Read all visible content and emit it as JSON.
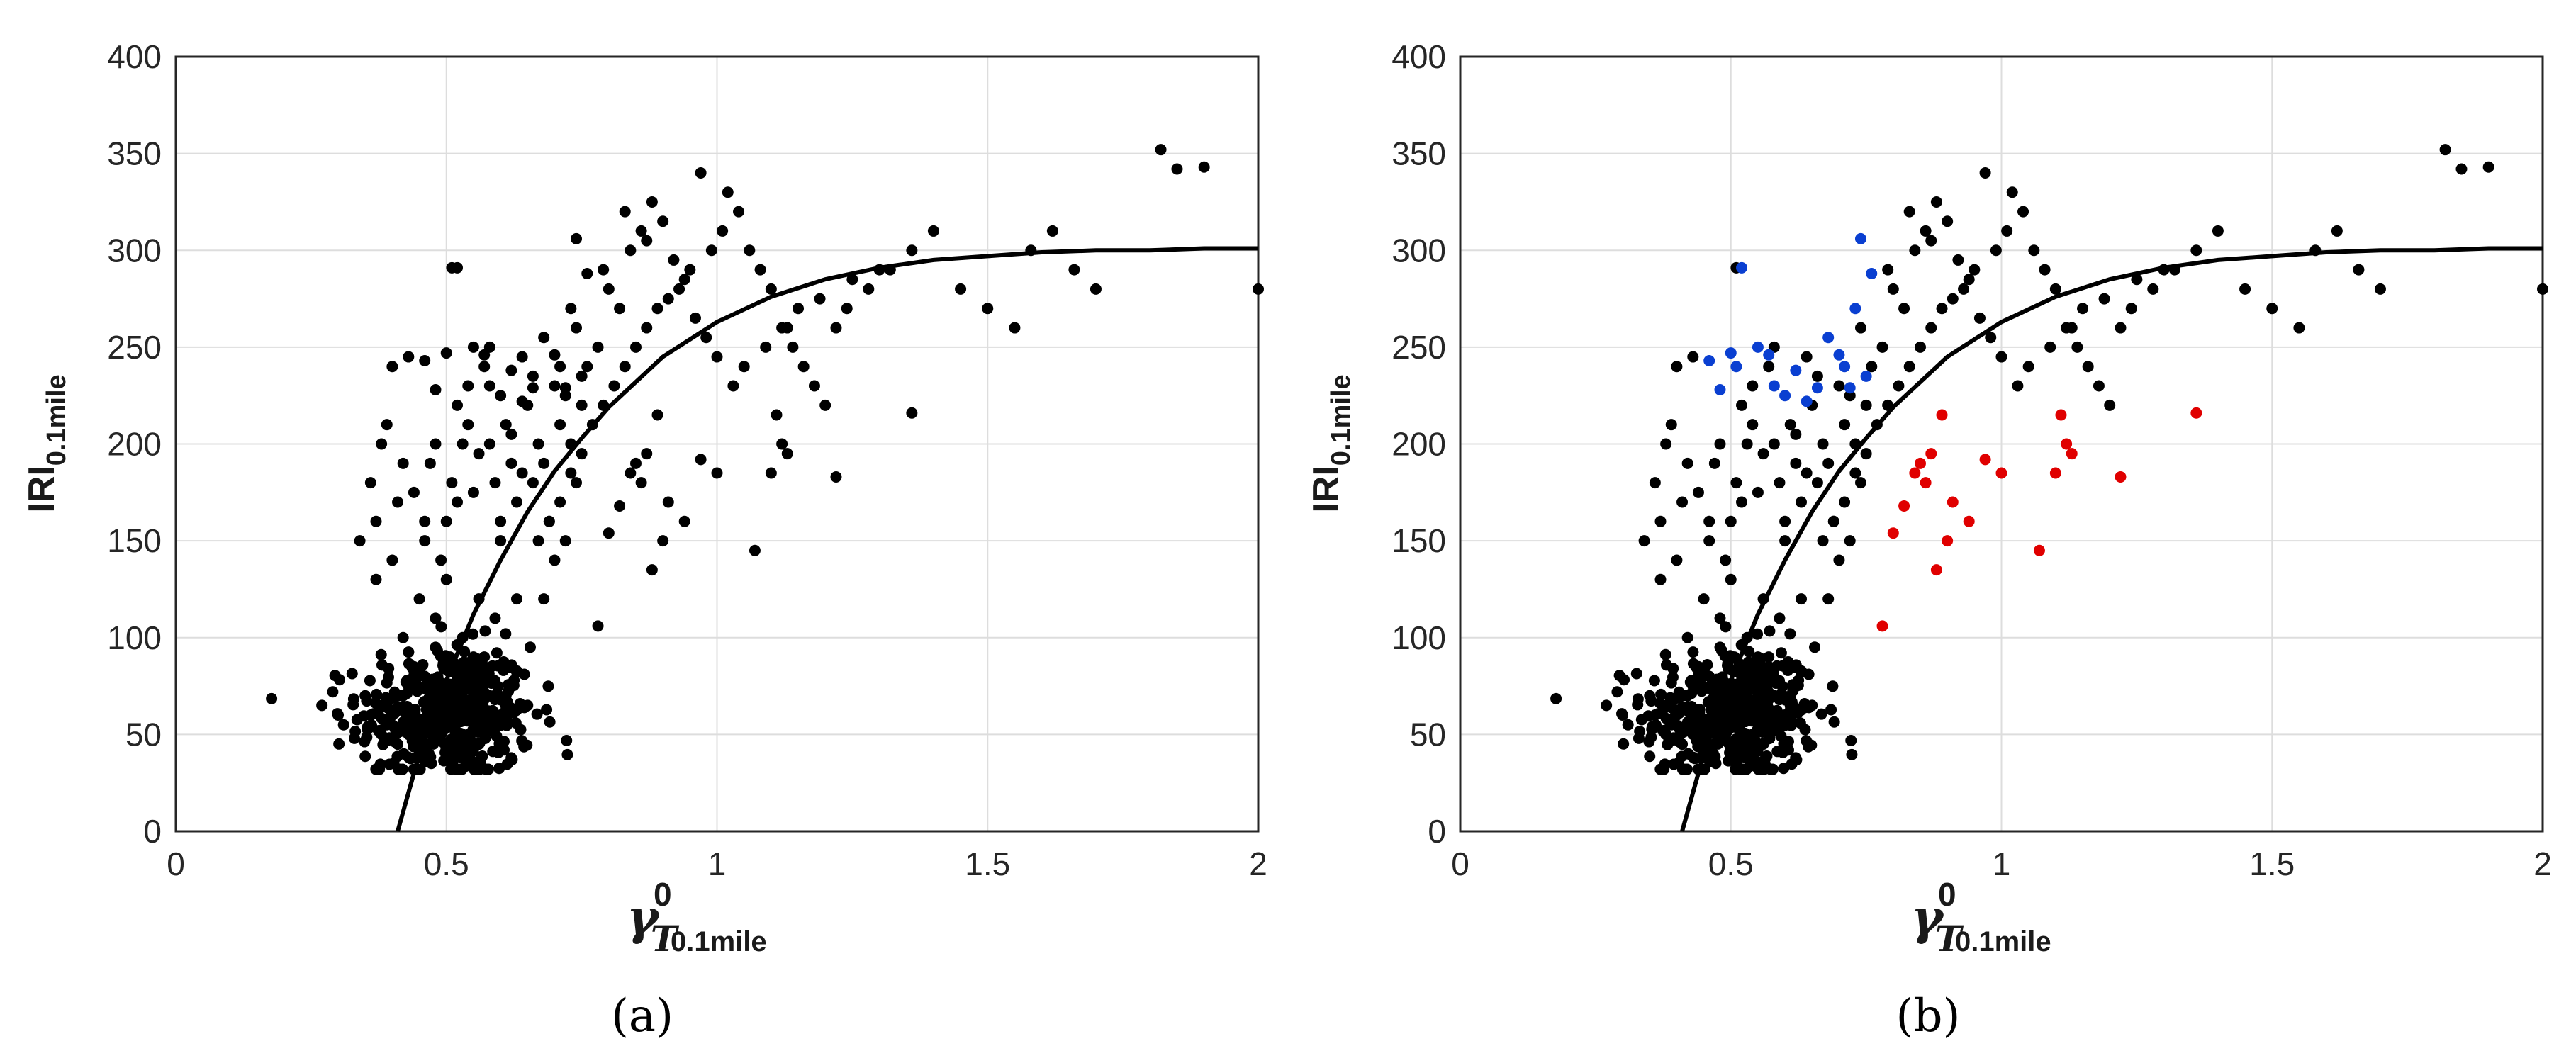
{
  "chart_data": [
    {
      "type": "scatter",
      "panel_label": "(a)",
      "xlabel": {
        "symbol": "γ",
        "superscript": "0",
        "subscript_italic": "T",
        "subscript": "0.1mile"
      },
      "ylabel": {
        "main": "IRI",
        "subscript": "0.1mile"
      },
      "xlim": [
        0,
        2
      ],
      "ylim": [
        0,
        400
      ],
      "xticks": [
        0,
        0.5,
        1,
        1.5,
        2
      ],
      "xtick_labels": [
        "0",
        "0.5",
        "1",
        "1.5",
        "2"
      ],
      "yticks": [
        0,
        50,
        100,
        150,
        200,
        250,
        300,
        350,
        400
      ],
      "ytick_labels": [
        "0",
        "50",
        "100",
        "150",
        "200",
        "250",
        "300",
        "350",
        "400"
      ],
      "grid": true,
      "legend": "none",
      "colors": {
        "points": "#000000",
        "fit_line": "#000000"
      },
      "fit_curve": {
        "x": [
          0.41,
          0.45,
          0.5,
          0.55,
          0.6,
          0.65,
          0.7,
          0.75,
          0.8,
          0.9,
          1.0,
          1.1,
          1.2,
          1.3,
          1.4,
          1.5,
          1.6,
          1.7,
          1.8,
          1.9,
          2.0
        ],
        "y": [
          0,
          40,
          78,
          112,
          140,
          165,
          186,
          203,
          219,
          245,
          263,
          276,
          285,
          291,
          295,
          297,
          299,
          300,
          300,
          301,
          301
        ]
      },
      "points": {
        "x": [
          0.52,
          0.27,
          0.29,
          0.31,
          0.33,
          0.3,
          0.35,
          0.34,
          0.37,
          0.36,
          0.38,
          0.39,
          0.37,
          0.4,
          0.41,
          0.42,
          0.4,
          0.43,
          0.44,
          0.42,
          0.45,
          0.46,
          0.44,
          0.47,
          0.48,
          0.46,
          0.49,
          0.5,
          0.48,
          0.51,
          0.52,
          0.5,
          0.53,
          0.54,
          0.52,
          0.55,
          0.56,
          0.54,
          0.57,
          0.58,
          0.56,
          0.59,
          0.6,
          0.58,
          0.61,
          0.62,
          0.6,
          0.63,
          0.64,
          0.62,
          0.65,
          0.66,
          0.64,
          0.67,
          0.68,
          0.66,
          0.69,
          0.7,
          0.68,
          0.71,
          0.72,
          0.7,
          0.73,
          0.74,
          0.72,
          0.75,
          0.76,
          0.74,
          0.78,
          0.8,
          0.82,
          0.79,
          0.84,
          0.86,
          0.83,
          0.88,
          0.9,
          0.87,
          0.92,
          0.94,
          0.91,
          0.96,
          0.98,
          1.0,
          0.97,
          1.02,
          1.04,
          1.06,
          1.08,
          1.1,
          1.12,
          1.14,
          1.16,
          1.18,
          1.2,
          1.22,
          1.24,
          1.28,
          1.32,
          1.36,
          1.4,
          1.45,
          1.5,
          1.55,
          1.58,
          1.62,
          1.66,
          1.7,
          1.82,
          1.85,
          1.9,
          2.0,
          0.78,
          0.8,
          0.82,
          0.84,
          0.85,
          0.86,
          0.87,
          0.88,
          0.89,
          0.9,
          0.91,
          0.94,
          0.97,
          1.0,
          1.07,
          1.1,
          1.11,
          1.12,
          1.13,
          1.22,
          1.36,
          0.46,
          0.48,
          0.5,
          0.51,
          0.55,
          0.57,
          0.58,
          0.6,
          0.62,
          0.64,
          0.66,
          0.68,
          0.7,
          0.71,
          0.72,
          0.73,
          0.74,
          0.75,
          0.76,
          0.45,
          0.47,
          0.49,
          0.51,
          0.53,
          0.55,
          0.42,
          0.44,
          0.46,
          0.48,
          0.5,
          0.52,
          0.54,
          0.56,
          0.58,
          0.43,
          0.47,
          0.49,
          0.51,
          0.53,
          0.55,
          0.57,
          0.59,
          0.61,
          0.4,
          0.44,
          0.48,
          0.52,
          0.56,
          0.6,
          0.38,
          0.41,
          0.45,
          0.49,
          0.53,
          0.57,
          0.61,
          0.65,
          0.36,
          0.39,
          0.43,
          0.47,
          0.51,
          0.55,
          0.59,
          0.63,
          0.67,
          0.69,
          0.71,
          0.73,
          0.75,
          0.77,
          0.79,
          0.81,
          0.83,
          0.85,
          0.87,
          0.89,
          0.93,
          0.95,
          0.99,
          1.01,
          1.03,
          1.05,
          1.09,
          1.13,
          1.15,
          1.19,
          1.25,
          1.3
        ],
        "y": [
          291,
          65,
          72,
          55,
          48,
          60,
          70,
          150,
          160,
          180,
          200,
          210,
          130,
          140,
          170,
          190,
          240,
          245,
          85,
          100,
          120,
          160,
          175,
          190,
          200,
          150,
          140,
          130,
          110,
          180,
          170,
          160,
          200,
          210,
          220,
          175,
          195,
          230,
          240,
          250,
          120,
          180,
          160,
          200,
          210,
          190,
          150,
          170,
          185,
          205,
          220,
          235,
          245,
          200,
          190,
          180,
          160,
          140,
          120,
          210,
          225,
          230,
          200,
          180,
          150,
          220,
          240,
          260,
          250,
          280,
          270,
          290,
          300,
          310,
          320,
          325,
          315,
          305,
          295,
          285,
          275,
          265,
          255,
          245,
          340,
          330,
          320,
          300,
          290,
          280,
          260,
          250,
          240,
          230,
          220,
          260,
          270,
          280,
          290,
          300,
          310,
          280,
          270,
          260,
          300,
          310,
          290,
          280,
          352,
          342,
          343,
          280,
          106,
          154,
          168,
          185,
          190,
          180,
          195,
          135,
          215,
          150,
          170,
          160,
          192,
          185,
          145,
          185,
          215,
          200,
          195,
          183,
          216,
          243,
          228,
          247,
          291,
          250,
          246,
          230,
          225,
          238,
          222,
          229,
          255,
          246,
          240,
          229,
          270,
          306,
          235,
          288,
          40,
          45,
          50,
          55,
          60,
          65,
          70,
          75,
          80,
          60,
          55,
          65,
          50,
          45,
          70,
          75,
          60,
          55,
          65,
          50,
          85,
          90,
          70,
          65,
          60,
          55,
          95,
          80,
          75,
          60,
          50,
          45,
          40,
          55,
          100,
          85,
          70,
          65,
          60,
          55,
          50,
          45,
          40,
          90,
          110,
          120,
          150,
          160,
          170,
          185,
          195,
          210,
          220,
          230,
          240,
          250,
          260,
          270,
          280,
          290,
          300,
          310,
          230,
          240,
          250,
          260,
          270,
          275,
          285,
          290
        ]
      },
      "dense_cluster": {
        "center": [
          0.5,
          60
        ],
        "spread": [
          0.08,
          18
        ],
        "count": 420
      }
    },
    {
      "type": "scatter",
      "panel_label": "(b)",
      "xlabel": {
        "symbol": "γ",
        "superscript": "0",
        "subscript_italic": "T",
        "subscript": "0.1mile"
      },
      "ylabel": {
        "main": "IRI",
        "subscript": "0.1mile"
      },
      "xlim": [
        0,
        2
      ],
      "ylim": [
        0,
        400
      ],
      "xticks": [
        0,
        0.5,
        1,
        1.5,
        2
      ],
      "xtick_labels": [
        "0",
        "0.5",
        "1",
        "1.5",
        "2"
      ],
      "yticks": [
        0,
        50,
        100,
        150,
        200,
        250,
        300,
        350,
        400
      ],
      "ytick_labels": [
        "0",
        "50",
        "100",
        "150",
        "200",
        "250",
        "300",
        "350",
        "400"
      ],
      "grid": true,
      "legend": "none",
      "colors": {
        "points": "#000000",
        "fit_line": "#000000",
        "highlight_above": "#0a3fd1",
        "highlight_below": "#e00000"
      },
      "highlight_above_points": {
        "x": [
          0.46,
          0.48,
          0.5,
          0.51,
          0.52,
          0.55,
          0.57,
          0.58,
          0.6,
          0.62,
          0.64,
          0.66,
          0.68,
          0.7,
          0.71,
          0.72,
          0.73,
          0.74,
          0.75,
          0.76
        ],
        "y": [
          243,
          228,
          247,
          240,
          291,
          250,
          246,
          230,
          225,
          238,
          222,
          229,
          255,
          246,
          240,
          229,
          270,
          306,
          235,
          288
        ]
      },
      "highlight_below_points": {
        "x": [
          0.78,
          0.8,
          0.82,
          0.84,
          0.85,
          0.86,
          0.87,
          0.88,
          0.89,
          0.9,
          0.91,
          0.94,
          0.97,
          1.0,
          1.07,
          1.1,
          1.11,
          1.12,
          1.13,
          1.22,
          1.36
        ],
        "y": [
          106,
          154,
          168,
          185,
          190,
          180,
          195,
          135,
          215,
          150,
          170,
          160,
          192,
          185,
          145,
          185,
          215,
          200,
          195,
          183,
          216
        ]
      }
    }
  ]
}
